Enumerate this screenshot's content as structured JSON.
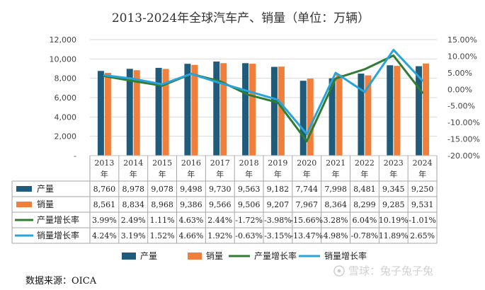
{
  "chart_data": {
    "type": "bar",
    "title": "2013-2024年全球汽车产、销量（单位：万辆）",
    "categories": [
      "2013年",
      "2014年",
      "2015年",
      "2016年",
      "2017年",
      "2018年",
      "2019年",
      "2020年",
      "2021年",
      "2022年",
      "2023年",
      "2024年"
    ],
    "category_labels": [
      {
        "year": "2013",
        "suffix": "年"
      },
      {
        "year": "2014",
        "suffix": "年"
      },
      {
        "year": "2015",
        "suffix": "年"
      },
      {
        "year": "2016",
        "suffix": "年"
      },
      {
        "year": "2017",
        "suffix": "年"
      },
      {
        "year": "2018",
        "suffix": "年"
      },
      {
        "year": "2019",
        "suffix": "年"
      },
      {
        "year": "2020",
        "suffix": "年"
      },
      {
        "year": "2021",
        "suffix": "年"
      },
      {
        "year": "2022",
        "suffix": "年"
      },
      {
        "year": "2023",
        "suffix": "年"
      },
      {
        "year": "2024",
        "suffix": "年"
      }
    ],
    "left_axis": {
      "min": 0,
      "max": 12000,
      "ticks": [
        "-",
        "2,000",
        "4,000",
        "6,000",
        "8,000",
        "10,000",
        "12,000"
      ]
    },
    "right_axis": {
      "min": -20,
      "max": 15,
      "ticks": [
        "-20.00%",
        "-15.00%",
        "-10.00%",
        "-5.00%",
        "0.00%",
        "5.00%",
        "10.00%",
        "15.00%"
      ]
    },
    "grid": true,
    "series": [
      {
        "name": "产量",
        "kind": "bar",
        "axis": "left",
        "color": "#1f5b7a",
        "values": [
          8760,
          8978,
          9078,
          9498,
          9730,
          9563,
          9182,
          7744,
          7998,
          8481,
          9345,
          9250
        ],
        "labels": [
          "8,760",
          "8,978",
          "9,078",
          "9,498",
          "9,730",
          "9,563",
          "9,182",
          "7,744",
          "7,998",
          "8,481",
          "9,345",
          "9,250"
        ]
      },
      {
        "name": "销量",
        "kind": "bar",
        "axis": "left",
        "color": "#f07f3c",
        "values": [
          8561,
          8834,
          8968,
          9386,
          9566,
          9506,
          9207,
          7967,
          8364,
          8299,
          9285,
          9531
        ],
        "labels": [
          "8,561",
          "8,834",
          "8,968",
          "9,386",
          "9,566",
          "9,506",
          "9,207",
          "7,967",
          "8,364",
          "8,299",
          "9,285",
          "9,531"
        ]
      },
      {
        "name": "产量增长率",
        "kind": "line",
        "axis": "right",
        "color": "#2e7d32",
        "values": [
          3.99,
          2.49,
          1.11,
          4.63,
          2.44,
          -1.72,
          -3.98,
          -15.66,
          3.28,
          6.04,
          10.19,
          -1.01
        ],
        "labels": [
          "3.99%",
          "2.49%",
          "1.11%",
          "4.63%",
          "2.44%",
          "-1.72%",
          "-3.98%",
          "-15.66%",
          "3.28%",
          "6.04%",
          "10.19%",
          "-1.01%"
        ]
      },
      {
        "name": "销量增长率",
        "kind": "line",
        "axis": "right",
        "color": "#29a3d9",
        "values": [
          4.24,
          3.19,
          1.52,
          4.66,
          1.92,
          -0.63,
          -3.15,
          -13.47,
          4.98,
          -0.78,
          11.89,
          2.65
        ],
        "labels": [
          "4.24%",
          "3.19%",
          "1.52%",
          "4.66%",
          "1.92%",
          "-0.63%",
          "-3.15%",
          "-13.47%",
          "4.98%",
          "-0.78%",
          "11.89%",
          "2.65%"
        ]
      }
    ],
    "legend": {
      "position": "bottom"
    }
  },
  "footer": {
    "source": "数据来源：OICA"
  },
  "watermark": {
    "text": "雪球：兔子兔子兔"
  }
}
